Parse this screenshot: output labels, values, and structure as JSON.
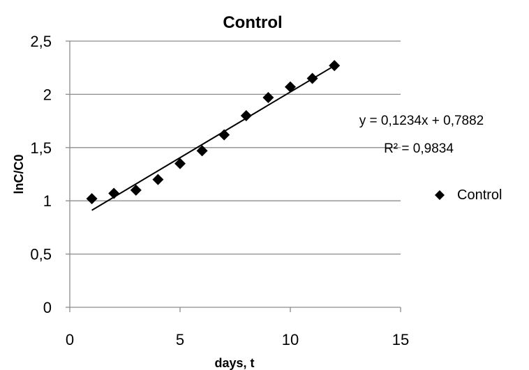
{
  "chart_data": {
    "type": "scatter",
    "title": "Control",
    "xlabel": "days, t",
    "ylabel": "lnC/C0",
    "xlim": [
      0,
      15
    ],
    "ylim": [
      0,
      2.5
    ],
    "x_ticks": [
      0,
      5,
      10,
      15
    ],
    "y_ticks": [
      0,
      0.5,
      1,
      1.5,
      2,
      2.5
    ],
    "x_tick_labels": [
      "0",
      "5",
      "10",
      "15"
    ],
    "y_tick_labels": [
      "0",
      "0,5",
      "1",
      "1,5",
      "2",
      "2,5"
    ],
    "grid": "horizontal",
    "legend_position": "right",
    "marker": "diamond",
    "marker_color": "#000000",
    "series": [
      {
        "name": "Control",
        "x": [
          1,
          2,
          3,
          4,
          5,
          6,
          7,
          8,
          9,
          10,
          11,
          12
        ],
        "y": [
          1.02,
          1.07,
          1.1,
          1.2,
          1.35,
          1.47,
          1.62,
          1.8,
          1.97,
          2.07,
          2.15,
          2.27
        ]
      }
    ],
    "trendline": {
      "slope": 0.1234,
      "intercept": 0.7882,
      "x_range": [
        1,
        12
      ],
      "equation": "y = 0,1234x + 0,7882",
      "r_squared": "R² = 0,9834"
    }
  }
}
